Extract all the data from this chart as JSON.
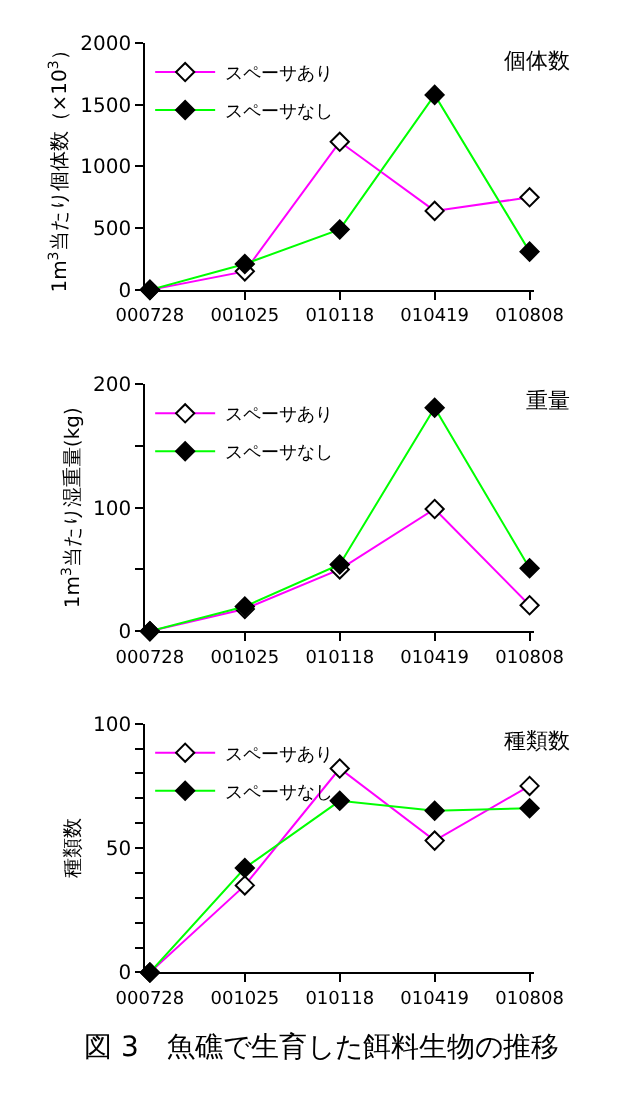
{
  "chart_data": [
    {
      "type": "line",
      "title": "個体数",
      "ylabel": "1m$^{3}$当たり個体数（×10$^{3}$）",
      "categories": [
        "000728",
        "001025",
        "010118",
        "010419",
        "010808"
      ],
      "ylim": [
        0,
        2000
      ],
      "yticks": [
        0,
        500,
        1000,
        1500,
        2000
      ],
      "legend": "top left",
      "marker": "diamond",
      "series": [
        {
          "name": "スペーサあり",
          "color": "#ff00ff",
          "values": [
            0,
            150,
            1200,
            640,
            750
          ]
        },
        {
          "name": "スペーサなし",
          "color": "#00ff00",
          "values": [
            0,
            210,
            490,
            1580,
            310
          ]
        }
      ]
    },
    {
      "type": "line",
      "title": "重量",
      "ylabel": "1m$^{3}$当たり湿重量(kg)",
      "categories": [
        "000728",
        "001025",
        "010118",
        "010419",
        "010808"
      ],
      "ylim": [
        0,
        200
      ],
      "yticks": [
        0,
        {
          "value": 50,
          "label": null
        },
        100,
        {
          "value": 150,
          "label": null
        },
        200
      ],
      "legend": "top left",
      "marker": "diamond",
      "series": [
        {
          "name": "スペーサあり",
          "color": "#ff00ff",
          "values": [
            0,
            18,
            50,
            99,
            21
          ]
        },
        {
          "name": "スペーサなし",
          "color": "#00ff00",
          "values": [
            0,
            20,
            54,
            181,
            51
          ]
        }
      ]
    },
    {
      "type": "line",
      "title": "種類数",
      "ylabel": "種類数",
      "categories": [
        "000728",
        "001025",
        "010118",
        "010419",
        "010808"
      ],
      "ylim": [
        0,
        100
      ],
      "yticks": [
        0,
        {
          "value": 10,
          "label": null
        },
        {
          "value": 20,
          "label": null
        },
        {
          "value": 30,
          "label": null
        },
        {
          "value": 40,
          "label": null
        },
        50,
        {
          "value": 60,
          "label": null
        },
        {
          "value": 70,
          "label": null
        },
        {
          "value": 80,
          "label": null
        },
        {
          "value": 90,
          "label": null
        },
        100
      ],
      "legend": "top left",
      "marker": "diamond",
      "annotations": [
        "図 3　魚礁で生育した餌料生物の推移"
      ],
      "series": [
        {
          "name": "スペーサあり",
          "color": "#ff00ff",
          "values": [
            0,
            35,
            82,
            53,
            75
          ]
        },
        {
          "name": "スペーサなし",
          "color": "#00ff00",
          "values": [
            0,
            42,
            69,
            65,
            66
          ]
        }
      ]
    }
  ]
}
